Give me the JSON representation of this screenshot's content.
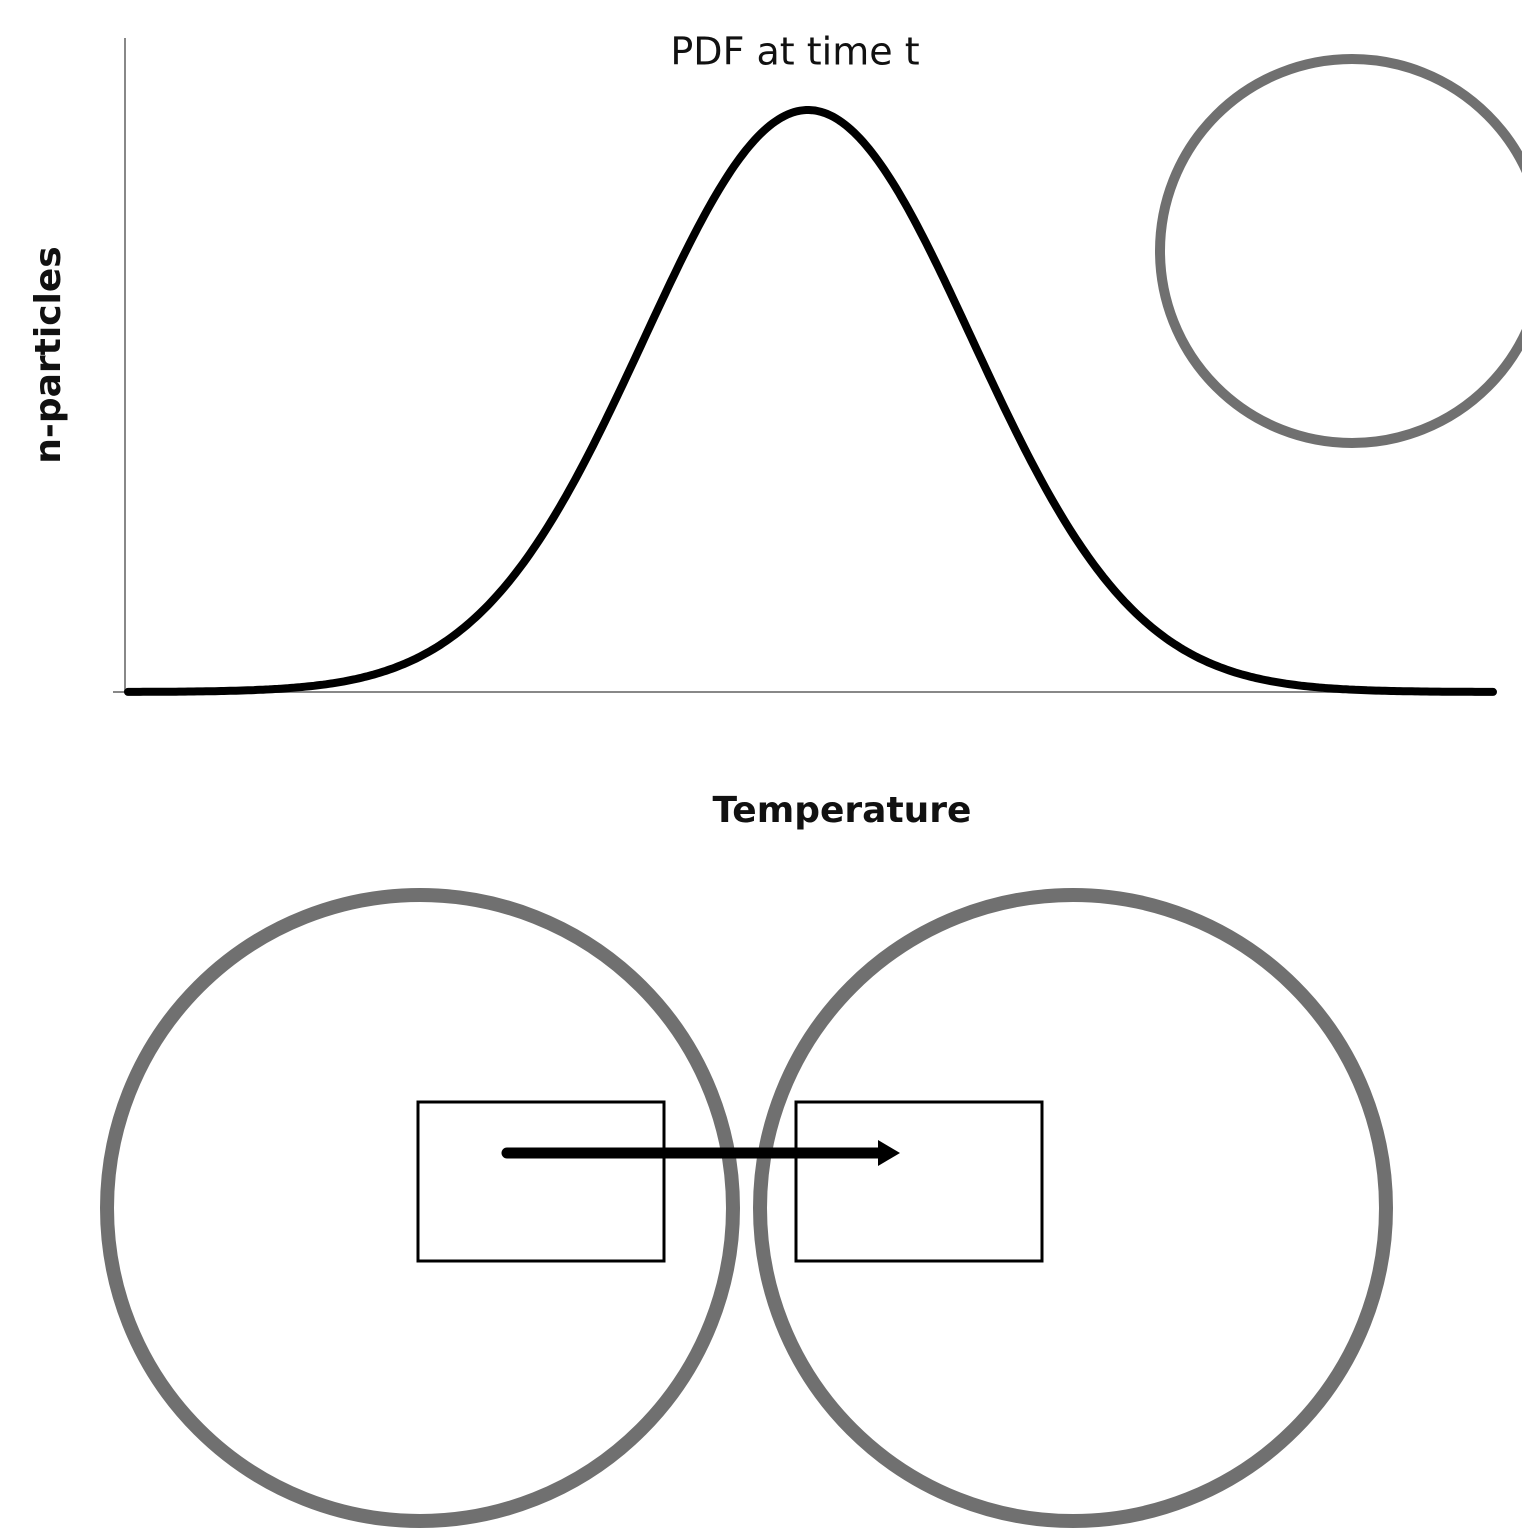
{
  "title": "PDF at time t",
  "y_axis_label": "n-particles",
  "x_axis_label": "Temperature"
}
